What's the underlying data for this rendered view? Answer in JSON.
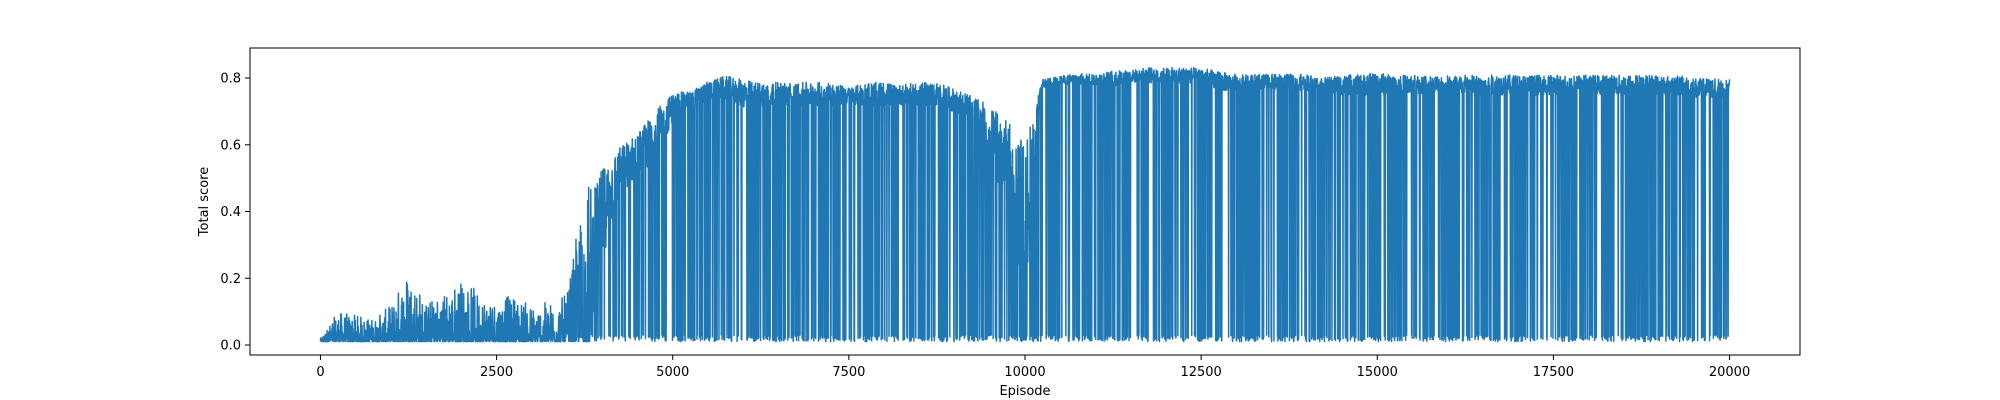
{
  "chart_data": {
    "type": "line",
    "title": "",
    "xlabel": "Episode",
    "ylabel": "Total score",
    "xlim": [
      -1000,
      21000
    ],
    "ylim": [
      -0.03,
      0.89
    ],
    "xticks": [
      0,
      2500,
      5000,
      7500,
      10000,
      12500,
      15000,
      17500,
      20000
    ],
    "xtick_labels": [
      "0",
      "2500",
      "5000",
      "7500",
      "10000",
      "12500",
      "15000",
      "17500",
      "20000"
    ],
    "yticks": [
      0.0,
      0.2,
      0.4,
      0.6,
      0.8
    ],
    "ytick_labels": [
      "0.0",
      "0.2",
      "0.4",
      "0.6",
      "0.8"
    ],
    "grid": false,
    "legend": "none",
    "series": [
      {
        "color": "#1f77b4",
        "x": [
          0,
          250,
          500,
          750,
          1000,
          1250,
          1500,
          1750,
          2000,
          2250,
          2500,
          2750,
          3000,
          3250,
          3500,
          3750,
          4000,
          4250,
          4500,
          4750,
          5000,
          5250,
          5500,
          5750,
          6000,
          6250,
          6500,
          6750,
          7000,
          7250,
          7500,
          7750,
          8000,
          8250,
          8500,
          8750,
          9000,
          9250,
          9500,
          9750,
          10000,
          10250,
          10500,
          10750,
          11000,
          11250,
          11500,
          11750,
          12000,
          12250,
          12500,
          12750,
          13000,
          13250,
          13500,
          13750,
          14000,
          14250,
          14500,
          14750,
          15000,
          15250,
          15500,
          15750,
          16000,
          16250,
          16500,
          16750,
          17000,
          17250,
          17500,
          17750,
          18000,
          18250,
          18500,
          18750,
          19000,
          19250,
          19500,
          19750,
          20000
        ],
        "min": [
          0.01,
          0.01,
          0.01,
          0.01,
          0.01,
          0.01,
          0.01,
          0.01,
          0.01,
          0.01,
          0.01,
          0.01,
          0.01,
          0.01,
          0.01,
          0.01,
          0.01,
          0.01,
          0.01,
          0.01,
          0.01,
          0.01,
          0.01,
          0.01,
          0.01,
          0.01,
          0.01,
          0.01,
          0.01,
          0.01,
          0.01,
          0.01,
          0.01,
          0.01,
          0.01,
          0.01,
          0.01,
          0.01,
          0.01,
          0.01,
          0.01,
          0.01,
          0.01,
          0.01,
          0.01,
          0.01,
          0.01,
          0.01,
          0.01,
          0.01,
          0.01,
          0.01,
          0.01,
          0.01,
          0.01,
          0.01,
          0.01,
          0.01,
          0.01,
          0.01,
          0.01,
          0.01,
          0.01,
          0.01,
          0.01,
          0.01,
          0.01,
          0.01,
          0.01,
          0.01,
          0.01,
          0.01,
          0.01,
          0.01,
          0.01,
          0.01,
          0.01,
          0.01,
          0.01,
          0.01,
          0.01
        ],
        "max": [
          0.02,
          0.1,
          0.09,
          0.08,
          0.12,
          0.24,
          0.13,
          0.16,
          0.2,
          0.16,
          0.14,
          0.15,
          0.12,
          0.13,
          0.15,
          0.48,
          0.58,
          0.62,
          0.66,
          0.73,
          0.77,
          0.77,
          0.8,
          0.82,
          0.81,
          0.8,
          0.8,
          0.8,
          0.8,
          0.8,
          0.78,
          0.8,
          0.8,
          0.79,
          0.8,
          0.8,
          0.78,
          0.76,
          0.75,
          0.72,
          0.7,
          0.8,
          0.81,
          0.82,
          0.82,
          0.83,
          0.83,
          0.84,
          0.84,
          0.84,
          0.84,
          0.83,
          0.82,
          0.82,
          0.82,
          0.82,
          0.82,
          0.81,
          0.82,
          0.82,
          0.83,
          0.82,
          0.82,
          0.82,
          0.82,
          0.82,
          0.82,
          0.82,
          0.82,
          0.82,
          0.82,
          0.82,
          0.82,
          0.82,
          0.82,
          0.82,
          0.82,
          0.82,
          0.81,
          0.81,
          0.81
        ],
        "typical": [
          0.01,
          0.02,
          0.02,
          0.02,
          0.03,
          0.03,
          0.03,
          0.03,
          0.03,
          0.03,
          0.03,
          0.03,
          0.03,
          0.03,
          0.04,
          0.1,
          0.35,
          0.5,
          0.55,
          0.6,
          0.7,
          0.73,
          0.75,
          0.76,
          0.74,
          0.74,
          0.74,
          0.74,
          0.74,
          0.74,
          0.74,
          0.74,
          0.74,
          0.74,
          0.74,
          0.74,
          0.72,
          0.7,
          0.6,
          0.5,
          0.3,
          0.78,
          0.79,
          0.79,
          0.79,
          0.79,
          0.8,
          0.8,
          0.8,
          0.8,
          0.8,
          0.78,
          0.78,
          0.78,
          0.78,
          0.78,
          0.78,
          0.77,
          0.77,
          0.77,
          0.77,
          0.77,
          0.77,
          0.77,
          0.77,
          0.77,
          0.77,
          0.77,
          0.77,
          0.77,
          0.77,
          0.77,
          0.77,
          0.77,
          0.77,
          0.77,
          0.77,
          0.77,
          0.76,
          0.76,
          0.76
        ]
      }
    ]
  }
}
